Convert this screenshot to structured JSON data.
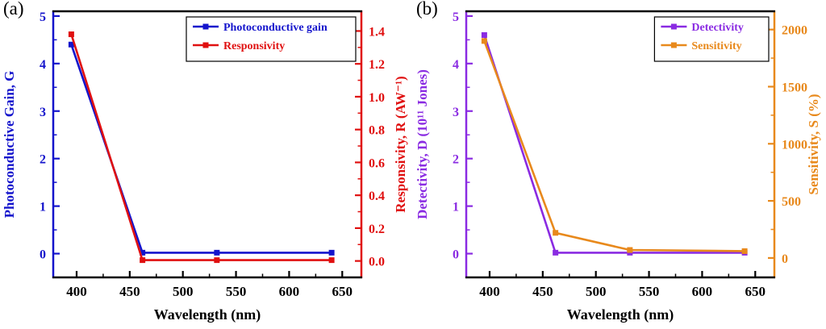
{
  "chart_data": [
    {
      "type": "line",
      "panel_label": "(a)",
      "title": "",
      "xlabel": "Wavelength (nm)",
      "x_range": [
        378,
        668
      ],
      "x_ticks": [
        400,
        450,
        500,
        550,
        600,
        650
      ],
      "legend_position": "top-right",
      "left_axis": {
        "label": "Photoconductive Gain, G",
        "color": "#1414cc",
        "range": [
          -0.5,
          5.1
        ],
        "ticks": [
          0,
          1,
          2,
          3,
          4,
          5
        ],
        "tick_labels": [
          "0",
          "1",
          "2",
          "3",
          "4",
          "5"
        ]
      },
      "right_axis": {
        "label": "Responsivity, R (AW⁻¹)",
        "color": "#e01010",
        "range": [
          -0.1,
          1.52
        ],
        "ticks": [
          0,
          0.2,
          0.4,
          0.6,
          0.8,
          1.0,
          1.2,
          1.4
        ],
        "tick_labels": [
          "0.0",
          "0.2",
          "0.4",
          "0.6",
          "0.8",
          "1.0",
          "1.2",
          "1.4"
        ]
      },
      "series": [
        {
          "name": "Photoconductive gain",
          "axis": "left",
          "color": "#1414cc",
          "x": [
            395,
            462,
            532,
            640
          ],
          "y": [
            4.4,
            0.02,
            0.02,
            0.02
          ]
        },
        {
          "name": "Responsivity",
          "axis": "right",
          "color": "#e01010",
          "x": [
            395,
            462,
            532,
            640
          ],
          "y": [
            1.38,
            0.005,
            0.005,
            0.005
          ]
        }
      ]
    },
    {
      "type": "line",
      "panel_label": "(b)",
      "title": "",
      "xlabel": "Wavelength (nm)",
      "x_range": [
        378,
        668
      ],
      "x_ticks": [
        400,
        450,
        500,
        550,
        600,
        650
      ],
      "legend_position": "top-right",
      "left_axis": {
        "label": "Detectivity, D (10¹¹ Jones)",
        "color": "#8a2be2",
        "range": [
          -0.5,
          5.1
        ],
        "ticks": [
          0,
          1,
          2,
          3,
          4,
          5
        ],
        "tick_labels": [
          "0",
          "1",
          "2",
          "3",
          "4",
          "5"
        ]
      },
      "right_axis": {
        "label": "Sensitivity, S (%)",
        "color": "#e8891c",
        "range": [
          -170,
          2160
        ],
        "ticks": [
          0,
          500,
          1000,
          1500,
          2000
        ],
        "tick_labels": [
          "0",
          "500",
          "1000",
          "1500",
          "2000"
        ]
      },
      "series": [
        {
          "name": "Detectivity",
          "axis": "left",
          "color": "#8a2be2",
          "x": [
            395,
            462,
            532,
            640
          ],
          "y": [
            4.6,
            0.02,
            0.02,
            0.02
          ]
        },
        {
          "name": "Sensitivity",
          "axis": "right",
          "color": "#e8891c",
          "x": [
            395,
            462,
            532,
            640
          ],
          "y": [
            1900,
            220,
            70,
            60
          ]
        }
      ]
    }
  ]
}
